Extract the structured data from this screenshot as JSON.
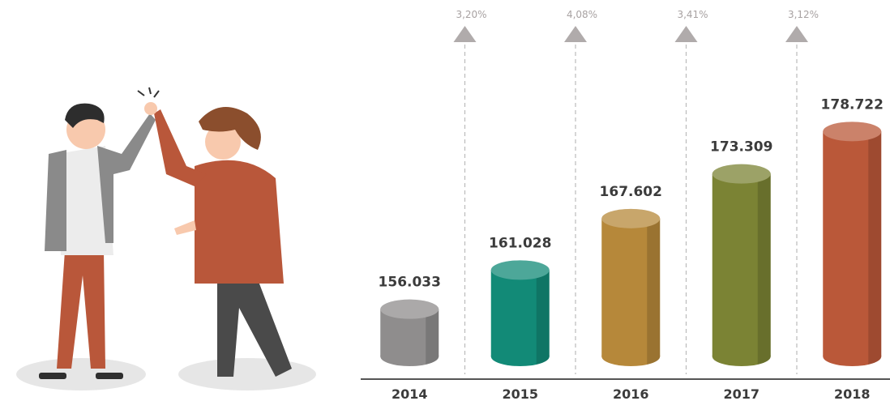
{
  "chart_data": {
    "type": "cylinder",
    "categories": [
      "2014",
      "2015",
      "2016",
      "2017",
      "2018"
    ],
    "values": [
      156033,
      161028,
      167602,
      173309,
      178722
    ],
    "value_labels": [
      "156.033",
      "161.028",
      "167.602",
      "173.309",
      "178.722"
    ],
    "colors": [
      "#8f8d8d",
      "#128a77",
      "#b6883a",
      "#7b8334",
      "#ba5839"
    ],
    "ylim": [
      150000,
      180000
    ],
    "annotations": [
      "3,20%",
      "4,08%",
      "3,41%",
      "3,12%"
    ]
  }
}
